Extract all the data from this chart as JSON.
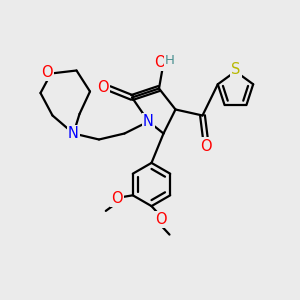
{
  "background_color": "#ebebeb",
  "bond_color": "#000000",
  "bond_width": 1.6,
  "atom_colors": {
    "O": "#ff0000",
    "N": "#0000ff",
    "S": "#b8b800",
    "H_teal": "#4a9090",
    "C": "#000000"
  },
  "fs": 10.5,
  "fs2": 9.5
}
